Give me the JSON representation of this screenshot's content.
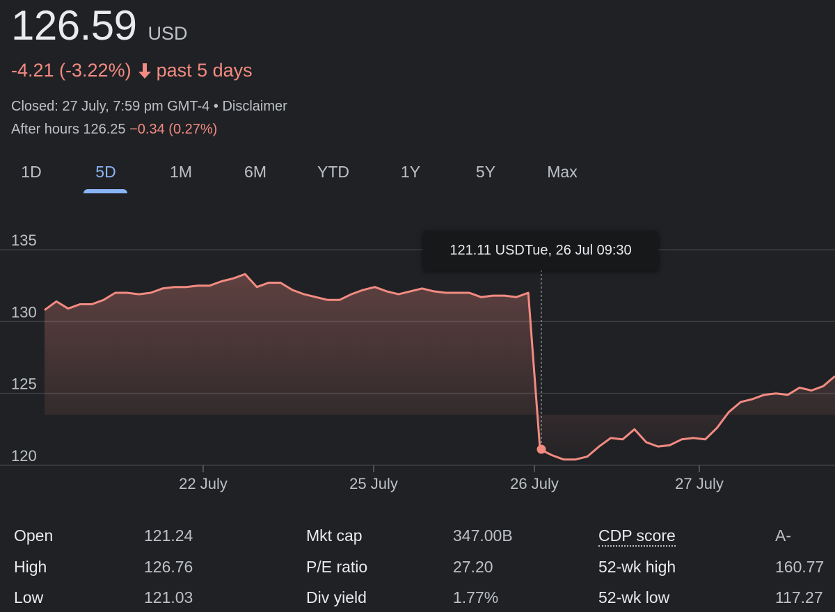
{
  "quote": {
    "price": "126.59",
    "currency": "USD",
    "change": "-4.21 (-3.22%)",
    "period": "past 5 days",
    "closed": "Closed: 27 July, 7:59 pm GMT-4",
    "separator": " • ",
    "disclaimer": "Disclaimer",
    "after_hours_label": "After hours 126.25",
    "after_hours_change": "−0.34 (0.27%)",
    "negative_color": "#f28b82"
  },
  "tabs": [
    {
      "label": "1D"
    },
    {
      "label": "5D",
      "active": true
    },
    {
      "label": "1M"
    },
    {
      "label": "6M"
    },
    {
      "label": "YTD"
    },
    {
      "label": "1Y"
    },
    {
      "label": "5Y"
    },
    {
      "label": "Max"
    }
  ],
  "tooltip": {
    "price": "121.11 USD",
    "time": "Tue, 26 Jul 09:30"
  },
  "chart_data": {
    "type": "area",
    "y_ticks": [
      "135",
      "130",
      "125",
      "120"
    ],
    "x_ticks": [
      "22 July",
      "25 July",
      "26 July",
      "27 July"
    ],
    "ylim": [
      120,
      135
    ],
    "grid": true,
    "line_color": "#f28b82",
    "values": [
      130.8,
      131.4,
      130.9,
      131.2,
      131.2,
      131.5,
      132.0,
      132.0,
      131.9,
      132.0,
      132.3,
      132.4,
      132.4,
      132.5,
      132.5,
      132.8,
      133.0,
      133.3,
      132.4,
      132.7,
      132.7,
      132.2,
      131.9,
      131.7,
      131.5,
      131.5,
      131.9,
      132.2,
      132.4,
      132.1,
      131.9,
      132.1,
      132.3,
      132.1,
      132.0,
      132.0,
      132.0,
      131.7,
      131.8,
      131.8,
      131.7,
      132.0,
      121.11,
      120.7,
      120.4,
      120.4,
      120.6,
      121.3,
      121.9,
      121.8,
      122.5,
      121.6,
      121.3,
      121.4,
      121.8,
      121.9,
      121.8,
      122.6,
      123.7,
      124.4,
      124.6,
      124.9,
      125.0,
      124.9,
      125.4,
      125.2,
      125.5,
      126.2
    ],
    "highlight_index": 42
  },
  "stats": {
    "col1": [
      {
        "label": "Open",
        "value": "121.24"
      },
      {
        "label": "High",
        "value": "126.76"
      },
      {
        "label": "Low",
        "value": "121.03"
      }
    ],
    "col2": [
      {
        "label": "Mkt cap",
        "value": "347.00B"
      },
      {
        "label": "P/E ratio",
        "value": "27.20"
      },
      {
        "label": "Div yield",
        "value": "1.77%"
      }
    ],
    "col3": [
      {
        "label": "CDP score",
        "value": "A-"
      },
      {
        "label": "52-wk high",
        "value": "160.77"
      },
      {
        "label": "52-wk low",
        "value": "117.27"
      }
    ]
  }
}
